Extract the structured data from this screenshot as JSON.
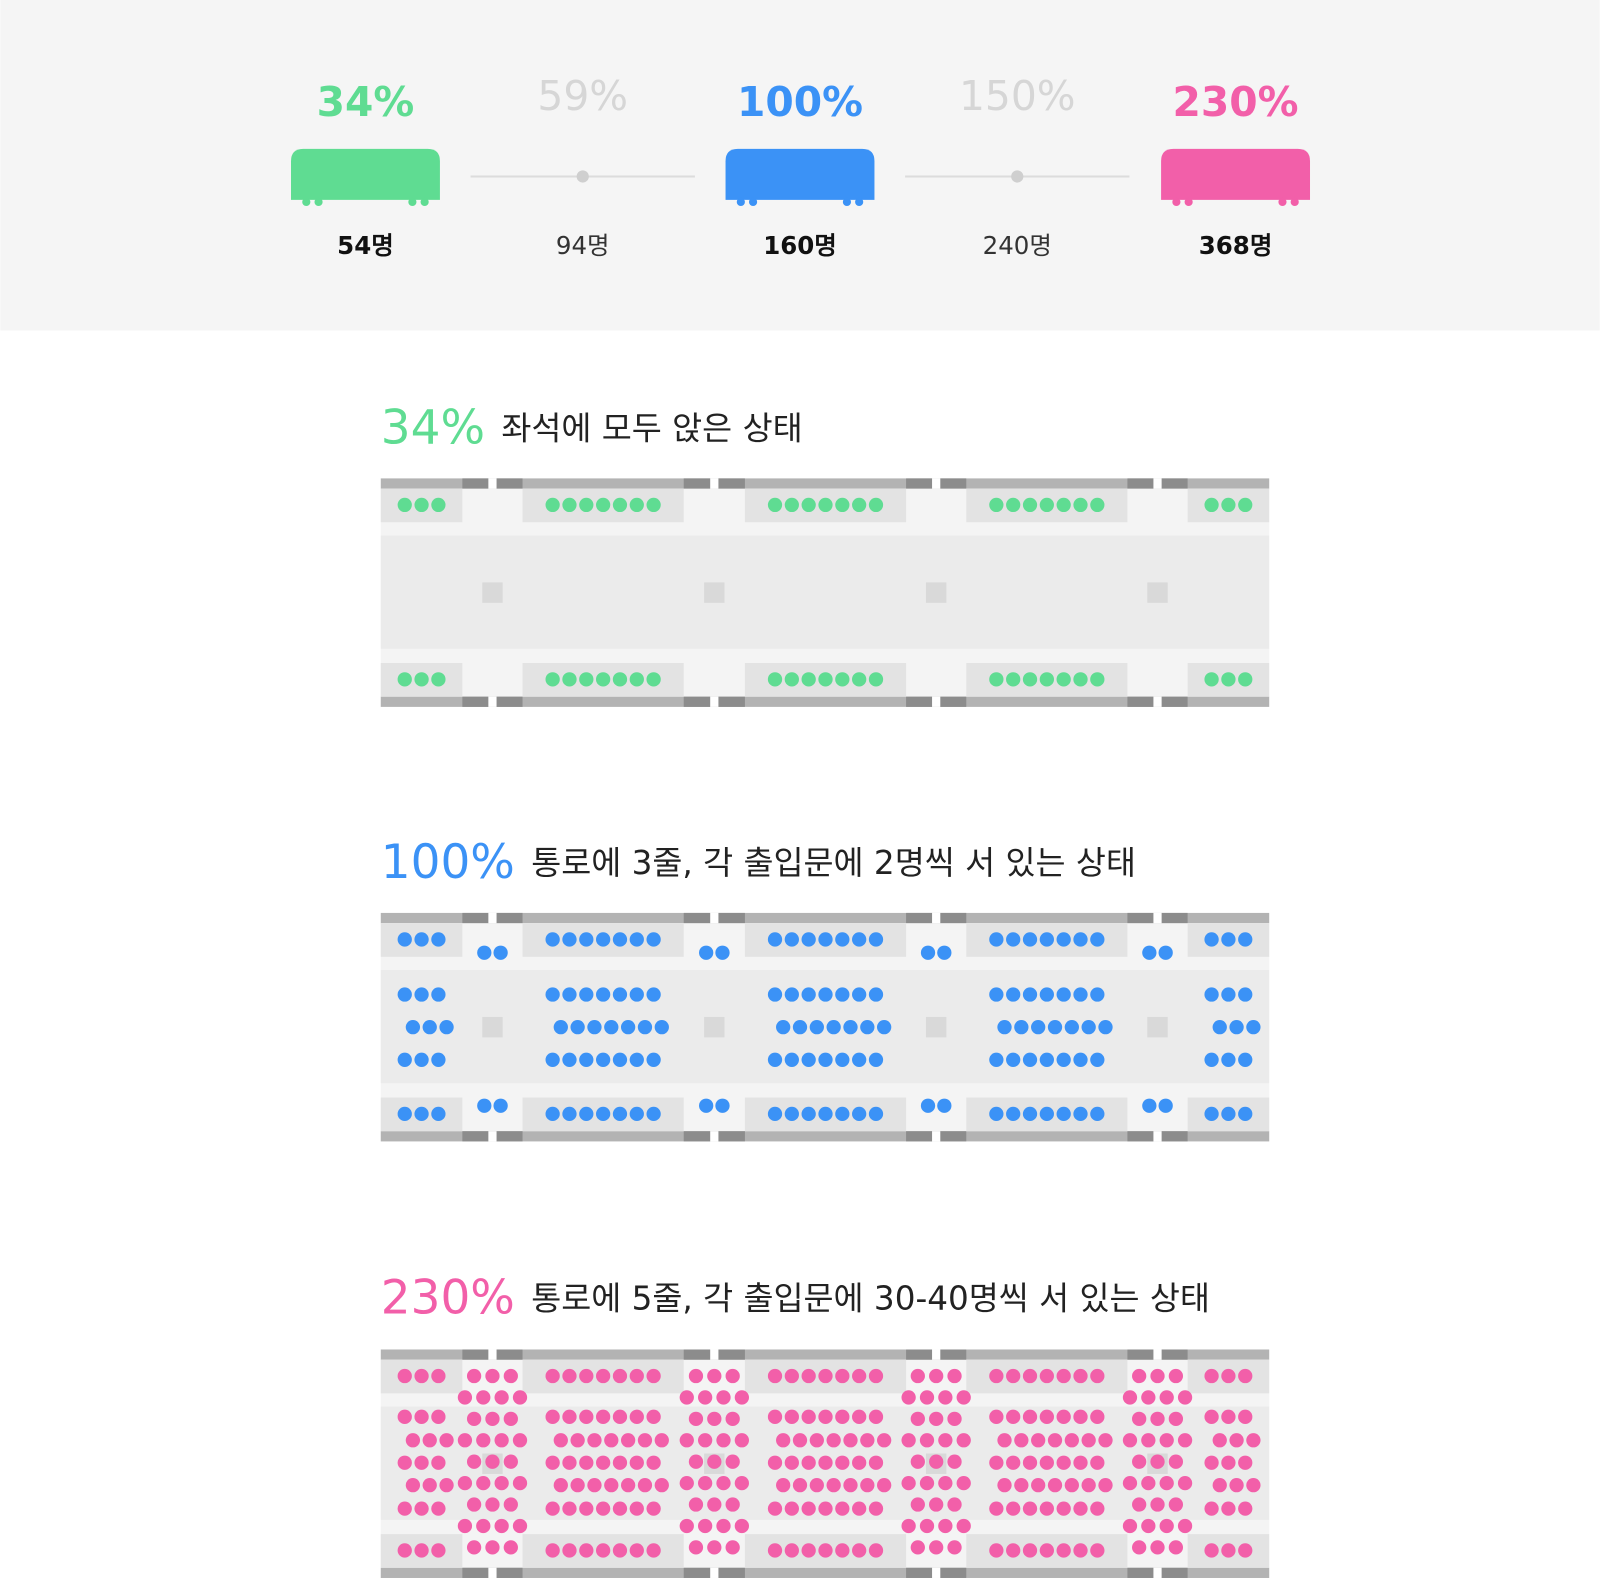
{
  "levels": [
    {
      "percent": "34%",
      "count": "54명",
      "active": true,
      "color": "#5fdc92"
    },
    {
      "percent": "59%",
      "count": "94명",
      "active": false,
      "color": "#d6d6d6"
    },
    {
      "percent": "100%",
      "count": "160명",
      "active": true,
      "color": "#3b92f6"
    },
    {
      "percent": "150%",
      "count": "240명",
      "active": false,
      "color": "#d6d6d6"
    },
    {
      "percent": "230%",
      "count": "368명",
      "active": true,
      "color": "#f25fa9"
    }
  ],
  "sections": [
    {
      "percent": "34%",
      "description": "좌석에 모두 앉은 상태",
      "color": "#5fdc92"
    },
    {
      "percent": "100%",
      "description": "통로에 3줄, 각 출입문에 2명씩 서 있는 상태",
      "color": "#3b92f6"
    },
    {
      "percent": "230%",
      "description": "통로에 5줄, 각 출입문에 30-40명씩 서 있는 상태",
      "color": "#f25fa9"
    }
  ]
}
